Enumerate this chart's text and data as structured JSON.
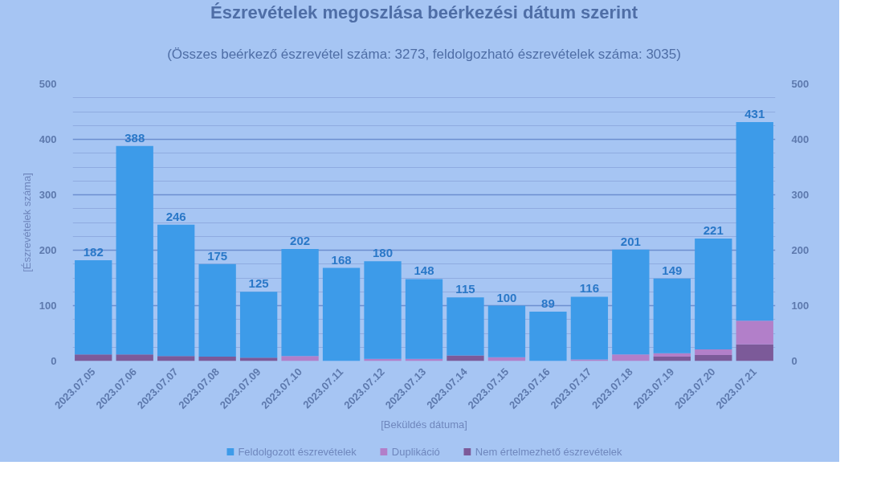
{
  "chart_data": {
    "type": "bar",
    "title": "Észrevételek megoszlása beérkezési dátum szerint",
    "subtitle": "(Összes beérkező észrevétel száma: 3273, feldolgozható észrevételek száma: 3035)",
    "xlabel": "[Beküldés dátuma]",
    "ylabel": "[Észrevételek száma]",
    "categories": [
      "2023.07.05",
      "2023.07.06",
      "2023.07.07",
      "2023.07.08",
      "2023.07.09",
      "2023.07.10",
      "2023.07.11",
      "2023.07.12",
      "2023.07.13",
      "2023.07.14",
      "2023.07.15",
      "2023.07.16",
      "2023.07.17",
      "2023.07.18",
      "2023.07.19",
      "2023.07.20",
      "2023.07.21"
    ],
    "stacked": true,
    "series": [
      {
        "name": "Nem értelmezhető észrevételek",
        "color": "#7c5a99",
        "values": [
          12,
          12,
          9,
          8,
          6,
          null,
          null,
          null,
          null,
          10,
          null,
          null,
          null,
          null,
          8,
          11,
          30
        ]
      },
      {
        "name": "Duplikáció",
        "color": "#b27fc9",
        "values": [
          null,
          null,
          null,
          null,
          null,
          9,
          null,
          4,
          4,
          null,
          7,
          null,
          3,
          12,
          6,
          10,
          43
        ]
      },
      {
        "name": "Feldolgozott észrevételek",
        "color": "#3d9be9",
        "values": [
          170,
          376,
          237,
          167,
          119,
          193,
          168,
          176,
          144,
          105,
          93,
          89,
          113,
          189,
          135,
          200,
          358
        ]
      }
    ],
    "totals": [
      "182",
      "388",
      "246",
      "175",
      "125",
      "202",
      "168",
      "180",
      "148",
      "115",
      "100",
      "89",
      "116",
      "201",
      "149",
      "221",
      "431"
    ],
    "ylim": [
      0,
      500
    ],
    "yticks": [
      0,
      {
        "value": 25,
        "label": null
      },
      {
        "value": 50,
        "label": null
      },
      {
        "value": 75,
        "label": null
      },
      100,
      {
        "value": 125,
        "label": null
      },
      {
        "value": 150,
        "label": null
      },
      {
        "value": 175,
        "label": null
      },
      200,
      {
        "value": 225,
        "label": null
      },
      {
        "value": 250,
        "label": null
      },
      {
        "value": 275,
        "label": null
      },
      300,
      {
        "value": 325,
        "label": null
      },
      {
        "value": 350,
        "label": null
      },
      {
        "value": 375,
        "label": null
      },
      400,
      {
        "value": 425,
        "label": null
      },
      {
        "value": 450,
        "label": null
      },
      {
        "value": 475,
        "label": null
      },
      500
    ],
    "y2lim": [
      0,
      500
    ],
    "y2ticks": [
      0,
      100,
      200,
      300,
      400,
      500
    ],
    "grid": "y",
    "legend": "bottom"
  }
}
